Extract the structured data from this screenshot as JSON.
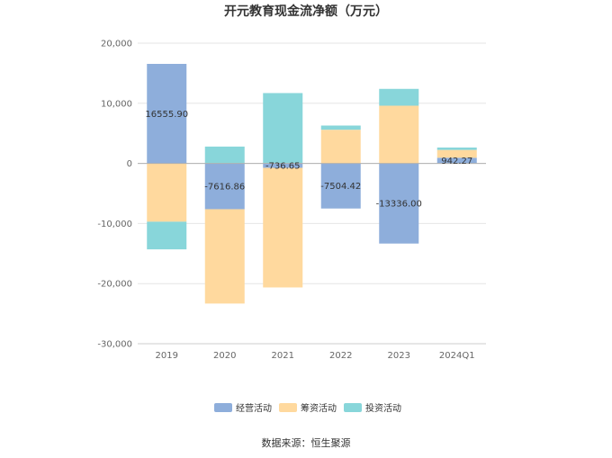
{
  "chart_data": {
    "type": "bar",
    "stacked": true,
    "title": "开元教育现金流净额（万元）",
    "categories": [
      "2019",
      "2020",
      "2021",
      "2022",
      "2023",
      "2024Q1"
    ],
    "series": [
      {
        "name": "经营活动",
        "color": "#8eaedb",
        "values": [
          16555.9,
          -7616.86,
          -736.65,
          -7504.42,
          -13336.0,
          942.27
        ]
      },
      {
        "name": "筹资活动",
        "color": "#ffd99e",
        "values": [
          -9700,
          -15700,
          -19900,
          5600,
          9600,
          1300
        ]
      },
      {
        "name": "投资活动",
        "color": "#88d6da",
        "values": [
          -4600,
          2800,
          11700,
          700,
          2800,
          400
        ]
      }
    ],
    "data_labels": [
      "16555.90",
      "-7616.86",
      "-736.65",
      "-7504.42",
      "-13336.00",
      "942.27"
    ],
    "yticks": [
      "20,000",
      "10,000",
      "0",
      "-10,000",
      "-20,000",
      "-30,000"
    ],
    "ytick_values": [
      20000,
      10000,
      0,
      -10000,
      -20000,
      -30000
    ],
    "ylim": [
      -30000,
      20000
    ],
    "grid": true,
    "legend_position": "bottom-center"
  },
  "source": "数据来源：恒生聚源"
}
